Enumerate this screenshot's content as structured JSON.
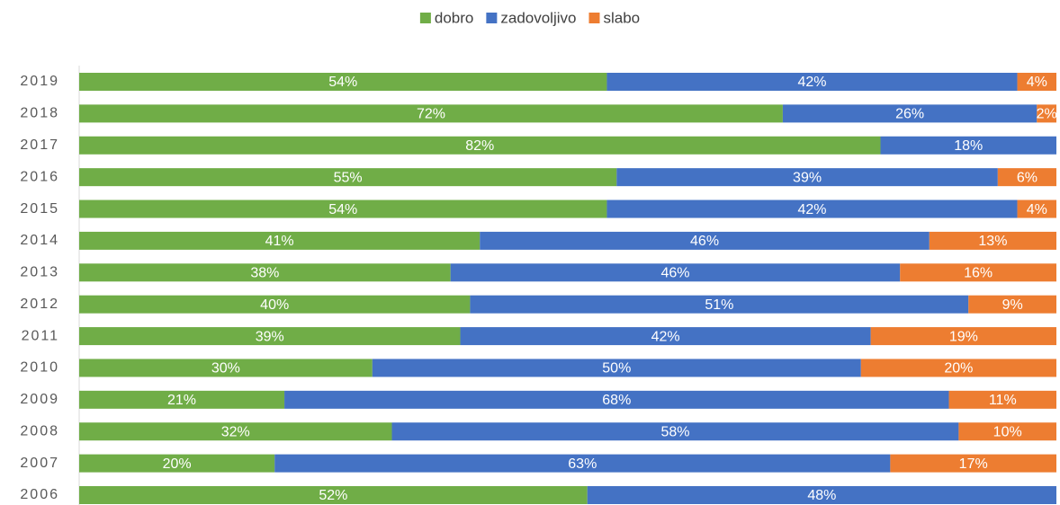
{
  "chart_data": {
    "type": "stacked-bar-horizontal",
    "categories": [
      "2019",
      "2018",
      "2017",
      "2016",
      "2015",
      "2014",
      "2013",
      "2012",
      "2011",
      "2010",
      "2009",
      "2008",
      "2007",
      "2006"
    ],
    "xlim": [
      0,
      100
    ],
    "legend": "top",
    "series": [
      {
        "name": "dobro",
        "color": "#70ad47",
        "values": [
          54,
          72,
          82,
          55,
          54,
          41,
          38,
          40,
          39,
          30,
          21,
          32,
          20,
          52
        ],
        "value_labels": [
          "54%",
          "72%",
          "82%",
          "55%",
          "54%",
          "41%",
          "38%",
          "40%",
          "39%",
          "30%",
          "21%",
          "32%",
          "20%",
          "52%"
        ]
      },
      {
        "name": "zadovoljivo",
        "color": "#4472c4",
        "values": [
          42,
          26,
          18,
          39,
          42,
          46,
          46,
          51,
          42,
          50,
          68,
          58,
          63,
          48
        ],
        "value_labels": [
          "42%",
          "26%",
          "18%",
          "39%",
          "42%",
          "46%",
          "46%",
          "51%",
          "42%",
          "50%",
          "68%",
          "58%",
          "63%",
          "48%"
        ]
      },
      {
        "name": "slabo",
        "color": "#ed7d31",
        "values": [
          4,
          2,
          0,
          6,
          4,
          13,
          16,
          9,
          19,
          20,
          11,
          10,
          17,
          0
        ],
        "value_labels": [
          "4%",
          "2%",
          null,
          "6%",
          "4%",
          "13%",
          "16%",
          "9%",
          "19%",
          "20%",
          "11%",
          "10%",
          "17%",
          null
        ]
      }
    ]
  }
}
